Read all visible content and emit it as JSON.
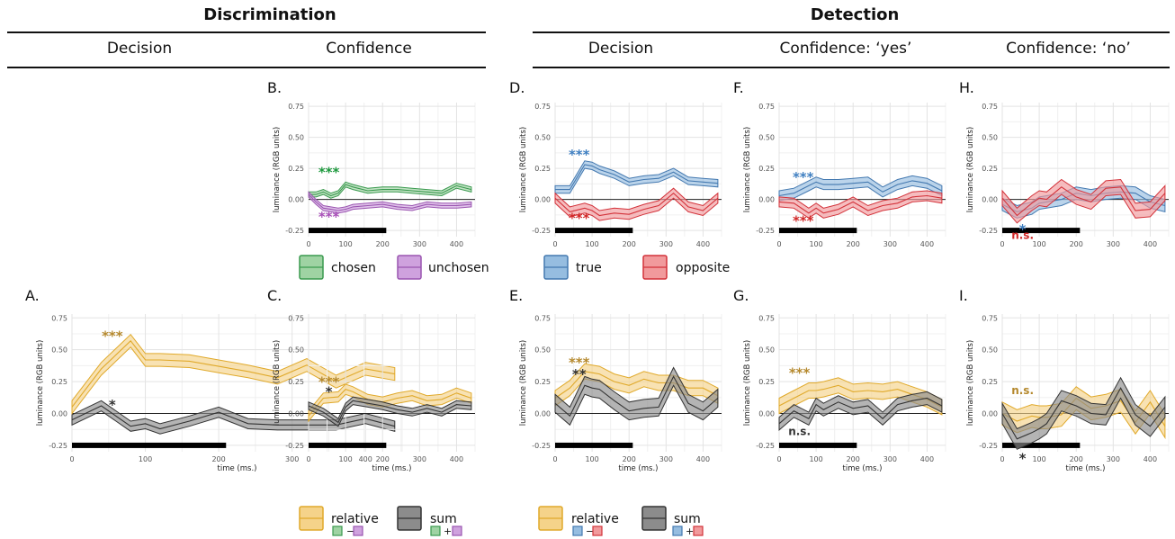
{
  "headers": {
    "discrimination": "Discrimination",
    "detection": "Detection",
    "columns": [
      "Decision",
      "Confidence",
      "Decision",
      "Confidence: ‘yes’",
      "Confidence: ‘no’"
    ]
  },
  "axes": {
    "ylabel": "luminance (RGB units)",
    "xlabel": "time (ms.)",
    "xticks": [
      "0",
      "100",
      "200",
      "300",
      "400"
    ],
    "yticks": [
      "-0.25",
      "0.00",
      "0.25",
      "0.50",
      "0.75"
    ],
    "xlim": [
      0,
      450
    ],
    "ylim": [
      -0.3,
      0.78
    ]
  },
  "colors": {
    "green": "#3a9a4f",
    "green_fill": "#9fd3a3",
    "purple": "#9a55b0",
    "purple_fill": "#cfa2de",
    "blue": "#4479b0",
    "blue_fill": "#96bde0",
    "red": "#d3323a",
    "red_fill": "#f19a9c",
    "gold": "#e0a92a",
    "gold_fill": "#f5d38a",
    "gray": "#333333",
    "gray_fill": "#8c8c8c",
    "star_gold": "#b5892e",
    "star_green": "#1f9a3f",
    "star_purple": "#a84fb8",
    "star_blue": "#3f7fc1",
    "star_red": "#d12828"
  },
  "legends": {
    "chosen": "chosen",
    "unchosen": "unchosen",
    "true": "true",
    "opposite": "opposite",
    "relative": "relative",
    "sum": "sum",
    "minus": "−",
    "plus": "+"
  },
  "chart_data": [
    {
      "panel": "A",
      "type": "area",
      "x": [
        0,
        40,
        80,
        100,
        120,
        160,
        200,
        240,
        280,
        320,
        360,
        400,
        440
      ],
      "series": [
        {
          "color": "gold",
          "values": [
            0.05,
            0.35,
            0.57,
            0.42,
            0.42,
            0.41,
            0.37,
            0.33,
            0.28,
            0.38,
            0.25,
            0.35,
            0.31
          ],
          "se": 0.05
        },
        {
          "color": "gray",
          "values": [
            -0.05,
            0.06,
            -0.1,
            -0.08,
            -0.12,
            -0.06,
            0.01,
            -0.08,
            -0.09,
            -0.09,
            -0.09,
            -0.04,
            -0.1
          ],
          "se": 0.04
        }
      ],
      "annotations": [
        {
          "text": "***",
          "x": 55,
          "y": 0.63,
          "color": "star_gold"
        },
        {
          "text": "*",
          "x": 55,
          "y": 0.09,
          "color": "gray"
        }
      ]
    },
    {
      "panel": "B",
      "type": "area",
      "x": [
        0,
        20,
        40,
        60,
        80,
        100,
        120,
        160,
        200,
        240,
        280,
        320,
        360,
        400,
        440
      ],
      "series": [
        {
          "color": "green",
          "values": [
            0.04,
            0.04,
            0.06,
            0.03,
            0.05,
            0.12,
            0.1,
            0.07,
            0.08,
            0.08,
            0.07,
            0.06,
            0.05,
            0.11,
            0.08
          ],
          "se": 0.02
        },
        {
          "color": "purple",
          "values": [
            0.04,
            -0.02,
            -0.07,
            -0.08,
            -0.09,
            -0.08,
            -0.06,
            -0.05,
            -0.04,
            -0.06,
            -0.07,
            -0.04,
            -0.05,
            -0.05,
            -0.04
          ],
          "se": 0.02
        }
      ],
      "annotations": [
        {
          "text": "***",
          "x": 55,
          "y": 0.24,
          "color": "star_green"
        },
        {
          "text": "***",
          "x": 55,
          "y": -0.12,
          "color": "star_purple"
        }
      ]
    },
    {
      "panel": "C",
      "type": "area",
      "x": [
        0,
        40,
        80,
        100,
        120,
        160,
        200,
        240,
        280,
        320,
        360,
        400,
        440
      ],
      "series": [
        {
          "color": "gold",
          "values": [
            -0.02,
            0.12,
            0.13,
            0.19,
            0.17,
            0.11,
            0.09,
            0.12,
            0.14,
            0.1,
            0.11,
            0.16,
            0.12
          ],
          "se": 0.04
        },
        {
          "color": "gray",
          "values": [
            0.06,
            0.01,
            -0.07,
            0.05,
            0.1,
            0.08,
            0.06,
            0.03,
            0.01,
            0.04,
            0.01,
            0.07,
            0.06
          ],
          "se": 0.03
        }
      ],
      "annotations": [
        {
          "text": "***",
          "x": 55,
          "y": 0.27,
          "color": "star_gold"
        },
        {
          "text": "*",
          "x": 55,
          "y": 0.19,
          "color": "gray"
        }
      ]
    },
    {
      "panel": "D",
      "type": "area",
      "x": [
        0,
        40,
        80,
        100,
        120,
        160,
        200,
        240,
        280,
        320,
        360,
        400,
        440
      ],
      "series": [
        {
          "color": "blue",
          "values": [
            0.08,
            0.08,
            0.28,
            0.27,
            0.24,
            0.2,
            0.14,
            0.16,
            0.17,
            0.22,
            0.15,
            0.14,
            0.13
          ],
          "se": 0.03
        },
        {
          "color": "red",
          "values": [
            0.01,
            -0.1,
            -0.07,
            -0.09,
            -0.13,
            -0.11,
            -0.12,
            -0.08,
            -0.05,
            0.05,
            -0.06,
            -0.09,
            0.01
          ],
          "se": 0.04
        }
      ],
      "annotations": [
        {
          "text": "***",
          "x": 65,
          "y": 0.38,
          "color": "star_blue"
        },
        {
          "text": "***",
          "x": 65,
          "y": -0.13,
          "color": "star_red"
        }
      ]
    },
    {
      "panel": "E",
      "type": "area",
      "x": [
        0,
        40,
        80,
        100,
        120,
        160,
        200,
        240,
        280,
        320,
        360,
        400,
        440
      ],
      "series": [
        {
          "color": "gold",
          "values": [
            0.12,
            0.2,
            0.33,
            0.32,
            0.31,
            0.25,
            0.22,
            0.27,
            0.24,
            0.24,
            0.2,
            0.2,
            0.14
          ],
          "se": 0.06
        },
        {
          "color": "gray",
          "values": [
            0.08,
            -0.02,
            0.22,
            0.2,
            0.19,
            0.1,
            0.02,
            0.04,
            0.05,
            0.29,
            0.08,
            0.02,
            0.12
          ],
          "se": 0.07
        }
      ],
      "annotations": [
        {
          "text": "***",
          "x": 65,
          "y": 0.42,
          "color": "star_gold"
        },
        {
          "text": "**",
          "x": 65,
          "y": 0.33,
          "color": "gray"
        }
      ]
    },
    {
      "panel": "F",
      "type": "area",
      "x": [
        0,
        40,
        80,
        100,
        120,
        160,
        200,
        240,
        280,
        320,
        360,
        400,
        440
      ],
      "series": [
        {
          "color": "blue",
          "values": [
            0.03,
            0.05,
            0.11,
            0.14,
            0.12,
            0.12,
            0.13,
            0.14,
            0.06,
            0.12,
            0.15,
            0.13,
            0.07
          ],
          "se": 0.04
        },
        {
          "color": "red",
          "values": [
            -0.02,
            -0.03,
            -0.11,
            -0.07,
            -0.11,
            -0.08,
            -0.02,
            -0.09,
            -0.05,
            -0.03,
            0.02,
            0.03,
            0.01
          ],
          "se": 0.04
        }
      ],
      "annotations": [
        {
          "text": "***",
          "x": 65,
          "y": 0.2,
          "color": "star_blue"
        },
        {
          "text": "***",
          "x": 65,
          "y": -0.15,
          "color": "star_red"
        }
      ]
    },
    {
      "panel": "G",
      "type": "area",
      "x": [
        0,
        40,
        80,
        100,
        120,
        160,
        200,
        240,
        280,
        320,
        360,
        400,
        440
      ],
      "series": [
        {
          "color": "gold",
          "values": [
            0.06,
            0.12,
            0.18,
            0.18,
            0.19,
            0.22,
            0.17,
            0.18,
            0.17,
            0.19,
            0.15,
            0.11,
            0.05
          ],
          "se": 0.06
        },
        {
          "color": "gray",
          "values": [
            -0.08,
            0.02,
            -0.04,
            0.07,
            0.03,
            0.09,
            0.04,
            0.06,
            -0.04,
            0.07,
            0.1,
            0.12,
            0.06
          ],
          "se": 0.05
        }
      ],
      "annotations": [
        {
          "text": "***",
          "x": 55,
          "y": 0.34,
          "color": "star_gold"
        },
        {
          "text": "n.s.",
          "x": 55,
          "y": -0.14,
          "color": "gray"
        }
      ]
    },
    {
      "panel": "H",
      "type": "area",
      "x": [
        0,
        40,
        80,
        100,
        120,
        160,
        200,
        240,
        280,
        320,
        360,
        400,
        440
      ],
      "series": [
        {
          "color": "blue",
          "values": [
            -0.04,
            -0.1,
            -0.07,
            -0.03,
            -0.02,
            0.0,
            0.05,
            0.03,
            0.05,
            0.06,
            0.05,
            -0.02,
            -0.05
          ],
          "se": 0.05
        },
        {
          "color": "red",
          "values": [
            0.01,
            -0.13,
            -0.03,
            0.01,
            0.0,
            0.1,
            0.02,
            -0.02,
            0.09,
            0.1,
            -0.09,
            -0.08,
            0.05
          ],
          "se": 0.06
        }
      ],
      "annotations": [
        {
          "text": "*",
          "x": 55,
          "y": -0.22,
          "color": "star_blue"
        },
        {
          "text": "n.s.",
          "x": 55,
          "y": -0.29,
          "color": "star_red"
        }
      ]
    },
    {
      "panel": "I",
      "type": "area",
      "x": [
        0,
        40,
        80,
        100,
        120,
        160,
        200,
        240,
        280,
        320,
        360,
        400,
        440
      ],
      "series": [
        {
          "color": "gold",
          "values": [
            0.0,
            -0.06,
            -0.02,
            -0.03,
            -0.03,
            -0.01,
            0.12,
            0.04,
            0.06,
            0.1,
            -0.07,
            0.09,
            -0.1
          ],
          "se": 0.09
        },
        {
          "color": "gray",
          "values": [
            0.0,
            -0.2,
            -0.15,
            -0.12,
            -0.08,
            0.1,
            0.06,
            0.0,
            -0.01,
            0.2,
            -0.01,
            -0.1,
            0.05
          ],
          "se": 0.08
        }
      ],
      "annotations": [
        {
          "text": "n.s.",
          "x": 55,
          "y": 0.18,
          "color": "star_gold"
        },
        {
          "text": "*",
          "x": 55,
          "y": -0.33,
          "color": "gray"
        }
      ]
    }
  ]
}
